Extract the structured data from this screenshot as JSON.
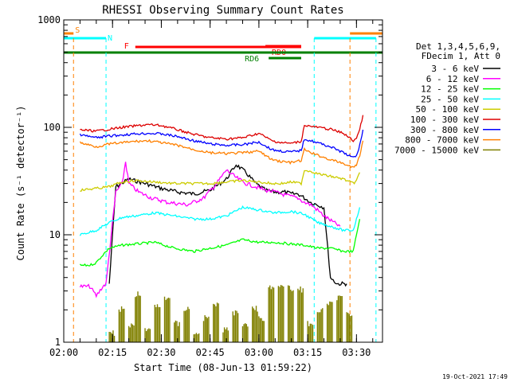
{
  "chart_data": {
    "type": "line",
    "title": "RHESSI Observing Summary Count Rates",
    "xlabel": "Start Time (08-Jun-13 01:59:22)",
    "ylabel": "Count Rate (s⁻¹ detector⁻¹)",
    "y_scale": "log",
    "ylim": [
      1,
      1000
    ],
    "xlim": [
      "02:00",
      "03:38"
    ],
    "x_ticks": [
      "02:00",
      "02:15",
      "02:30",
      "02:45",
      "03:00",
      "03:15",
      "03:30"
    ],
    "y_ticks": [
      "1",
      "10",
      "100",
      "1000"
    ],
    "timestamp": "19-Oct-2021 17:49",
    "legend": {
      "position": "right",
      "header": [
        "Det 1,3,4,5,6,9,",
        "FDecim 1, Att 0"
      ],
      "entries": [
        {
          "label": "3 - 6 keV",
          "color": "#000000"
        },
        {
          "label": "6 - 12 keV",
          "color": "#ff00ff"
        },
        {
          "label": "12 - 25 keV",
          "color": "#00ff00"
        },
        {
          "label": "25 - 50 keV",
          "color": "#00ffff"
        },
        {
          "label": "50 - 100 keV",
          "color": "#cccc00"
        },
        {
          "label": "100 - 300 keV",
          "color": "#dd0000"
        },
        {
          "label": "300 - 800 keV",
          "color": "#0000ff"
        },
        {
          "label": "800 - 7000 keV",
          "color": "#ff8000"
        },
        {
          "label": "7000 - 15000 keV",
          "color": "#808000"
        }
      ]
    },
    "flag_bars": [
      {
        "label": "S",
        "color": "#ff8000",
        "segments": [
          [
            "02:00",
            "02:03"
          ],
          [
            "03:28",
            "03:38"
          ]
        ]
      },
      {
        "label": "N",
        "color": "#00ffff",
        "segments": [
          [
            "02:00",
            "02:13"
          ],
          [
            "03:17",
            "03:36"
          ]
        ]
      },
      {
        "label": "F",
        "color": "#ff0000",
        "segments": [
          [
            "02:22",
            "03:13"
          ]
        ]
      },
      {
        "label": "RD0",
        "color": "#ff0000",
        "segments": [
          [
            "03:02",
            "03:13"
          ]
        ]
      },
      {
        "label": "RD6",
        "color": "#008000",
        "segments": [
          [
            "03:03",
            "03:13"
          ]
        ]
      },
      {
        "label": "",
        "color": "#008000",
        "segments": [
          [
            "02:00",
            "03:38"
          ]
        ]
      }
    ],
    "vlines": [
      {
        "time": "02:03",
        "color": "#ff8000"
      },
      {
        "time": "02:13",
        "color": "#00ffff"
      },
      {
        "time": "03:17",
        "color": "#00ffff"
      },
      {
        "time": "03:28",
        "color": "#ff8000"
      },
      {
        "time": "03:36",
        "color": "#00ffff"
      }
    ],
    "series": [
      {
        "name": "3 - 6 keV",
        "color": "#000000",
        "x": [
          "02:14",
          "02:16",
          "02:20",
          "02:25",
          "02:30",
          "02:35",
          "02:40",
          "02:45",
          "02:50",
          "02:53",
          "02:56",
          "02:59",
          "03:02",
          "03:05",
          "03:08",
          "03:10",
          "03:12",
          "03:14",
          "03:16",
          "03:18",
          "03:20",
          "03:22",
          "03:24",
          "03:26",
          "03:27"
        ],
        "y": [
          3.5,
          28,
          33,
          30,
          27,
          25,
          24,
          26,
          33,
          45,
          38,
          30,
          26,
          25,
          25,
          24,
          24,
          22,
          20,
          19,
          18,
          4,
          3.5,
          3.5,
          3.5
        ]
      },
      {
        "name": "6 - 12 keV",
        "color": "#ff00ff",
        "x": [
          "02:05",
          "02:08",
          "02:10",
          "02:12",
          "02:13",
          "02:16",
          "02:18",
          "02:19",
          "02:20",
          "02:23",
          "02:27",
          "02:32",
          "02:38",
          "02:43",
          "02:47",
          "02:50",
          "02:53",
          "02:56",
          "02:59",
          "03:02",
          "03:05",
          "03:09",
          "03:12",
          "03:14",
          "03:16",
          "03:18",
          "03:20",
          "03:23",
          "03:25"
        ],
        "y": [
          3.3,
          3.3,
          2.7,
          3.3,
          3.5,
          25,
          30,
          48,
          30,
          25,
          22,
          20,
          19,
          22,
          30,
          40,
          34,
          30,
          28,
          26,
          25,
          23,
          22,
          20,
          19,
          17,
          15,
          13,
          12
        ]
      },
      {
        "name": "12 - 25 keV",
        "color": "#00ff00",
        "x": [
          "02:05",
          "02:08",
          "02:10",
          "02:12",
          "02:14",
          "02:18",
          "02:22",
          "02:28",
          "02:34",
          "02:40",
          "02:45",
          "02:50",
          "02:55",
          "03:00",
          "03:05",
          "03:10",
          "03:14",
          "03:18",
          "03:22",
          "03:26",
          "03:29",
          "03:30",
          "03:31"
        ],
        "y": [
          5.2,
          5.2,
          5.5,
          6.5,
          7.5,
          8,
          8.2,
          8.5,
          7.5,
          7,
          7.5,
          8,
          9,
          8.5,
          8.5,
          8.2,
          8,
          7.5,
          7.5,
          7,
          7,
          10,
          14
        ]
      },
      {
        "name": "25 - 50 keV",
        "color": "#00ffff",
        "x": [
          "02:05",
          "02:10",
          "02:14",
          "02:18",
          "02:22",
          "02:28",
          "02:34",
          "02:40",
          "02:45",
          "02:50",
          "02:55",
          "03:00",
          "03:05",
          "03:10",
          "03:14",
          "03:18",
          "03:22",
          "03:26",
          "03:29",
          "03:30",
          "03:31"
        ],
        "y": [
          10,
          11,
          13,
          14.5,
          15,
          16,
          15,
          14,
          14,
          15,
          18,
          17,
          16,
          16.5,
          15.5,
          13,
          12,
          11,
          11,
          14,
          18
        ]
      },
      {
        "name": "50 - 100 keV",
        "color": "#cccc00",
        "x": [
          "02:05",
          "02:10",
          "02:14",
          "02:18",
          "02:22",
          "02:28",
          "02:34",
          "02:40",
          "02:45",
          "02:50",
          "02:55",
          "03:00",
          "03:04",
          "03:07",
          "03:10",
          "03:13",
          "03:14",
          "03:16",
          "03:18",
          "03:22",
          "03:26",
          "03:29",
          "03:30",
          "03:31"
        ],
        "y": [
          26,
          27,
          28,
          31,
          32,
          31,
          30,
          30,
          30,
          31,
          32,
          31,
          30,
          30,
          31,
          30,
          40,
          39,
          37,
          35,
          33,
          30,
          32,
          38
        ]
      },
      {
        "name": "100 - 300 keV",
        "color": "#dd0000",
        "x": [
          "02:05",
          "02:10",
          "02:14",
          "02:18",
          "02:22",
          "02:26",
          "02:30",
          "02:35",
          "02:40",
          "02:45",
          "02:50",
          "02:55",
          "03:00",
          "03:04",
          "03:07",
          "03:10",
          "03:13",
          "03:14",
          "03:16",
          "03:18",
          "03:22",
          "03:26",
          "03:29",
          "03:30",
          "03:31",
          "03:32"
        ],
        "y": [
          95,
          92,
          96,
          100,
          103,
          106,
          104,
          95,
          86,
          80,
          78,
          80,
          88,
          75,
          72,
          71,
          74,
          105,
          102,
          100,
          96,
          88,
          75,
          80,
          95,
          130
        ]
      },
      {
        "name": "300 - 800 keV",
        "color": "#0000ff",
        "x": [
          "02:05",
          "02:10",
          "02:14",
          "02:18",
          "02:22",
          "02:26",
          "02:30",
          "02:35",
          "02:40",
          "02:45",
          "02:50",
          "02:55",
          "03:00",
          "03:04",
          "03:07",
          "03:10",
          "03:13",
          "03:14",
          "03:16",
          "03:18",
          "03:22",
          "03:26",
          "03:29",
          "03:30",
          "03:31",
          "03:32"
        ],
        "y": [
          85,
          80,
          83,
          85,
          87,
          88,
          87,
          82,
          75,
          70,
          68,
          69,
          73,
          62,
          60,
          59,
          61,
          78,
          75,
          72,
          66,
          58,
          52,
          55,
          68,
          95
        ]
      },
      {
        "name": "800 - 7000 keV",
        "color": "#ff8000",
        "x": [
          "02:05",
          "02:10",
          "02:14",
          "02:18",
          "02:22",
          "02:26",
          "02:30",
          "02:35",
          "02:40",
          "02:45",
          "02:50",
          "02:55",
          "03:00",
          "03:04",
          "03:07",
          "03:10",
          "03:13",
          "03:14",
          "03:16",
          "03:18",
          "03:22",
          "03:26",
          "03:29",
          "03:30",
          "03:31",
          "03:32"
        ],
        "y": [
          72,
          66,
          70,
          72,
          74,
          75,
          72,
          68,
          62,
          58,
          57,
          58,
          60,
          50,
          48,
          47,
          49,
          62,
          58,
          55,
          50,
          46,
          42,
          45,
          55,
          75
        ]
      },
      {
        "name": "7000 - 15000 keV",
        "color": "#808000",
        "x": [
          "02:14",
          "02:17",
          "02:20",
          "02:22",
          "02:25",
          "02:28",
          "02:31",
          "02:34",
          "02:37",
          "02:40",
          "02:43",
          "02:46",
          "02:49",
          "02:52",
          "02:55",
          "02:58",
          "03:00",
          "03:03",
          "03:06",
          "03:09",
          "03:12",
          "03:15",
          "03:18",
          "03:21",
          "03:24",
          "03:27"
        ],
        "y": [
          1.3,
          2.2,
          1.5,
          3.0,
          1.4,
          2.3,
          2.8,
          1.6,
          2.2,
          1.3,
          1.8,
          2.4,
          1.4,
          2.0,
          1.6,
          2.2,
          1.8,
          3.5,
          3.6,
          3.4,
          3.3,
          1.6,
          2.1,
          2.4,
          2.8,
          2.0
        ]
      }
    ]
  }
}
